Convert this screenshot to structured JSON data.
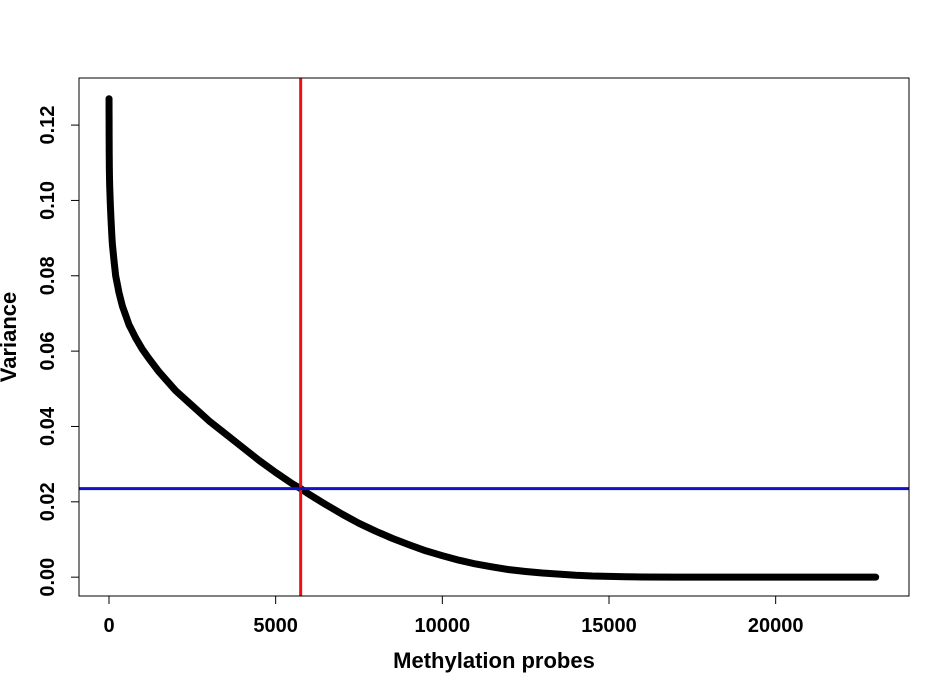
{
  "chart_data": {
    "type": "scatter",
    "title": "",
    "xlabel": "Methylation probes",
    "ylabel": "Variance",
    "xlim": [
      -900,
      24000
    ],
    "ylim": [
      -0.005,
      0.1325
    ],
    "xticks": [
      0,
      5000,
      10000,
      15000,
      20000
    ],
    "xtick_labels": [
      "0",
      "5000",
      "10000",
      "15000",
      "20000"
    ],
    "yticks": [
      0.0,
      0.02,
      0.04,
      0.06,
      0.08,
      0.1,
      0.12
    ],
    "ytick_labels": [
      "0.00",
      "0.02",
      "0.04",
      "0.06",
      "0.08",
      "0.10",
      "0.12"
    ],
    "grid": false,
    "series": [
      {
        "color": "#000000",
        "x": [
          1,
          2,
          3,
          4,
          5,
          6,
          7,
          8,
          10,
          12,
          15,
          20,
          30,
          40,
          60,
          80,
          100,
          150,
          200,
          300,
          400,
          500,
          600,
          800,
          1000,
          1200,
          1500,
          2000,
          2500,
          3000,
          3500,
          4000,
          4500,
          5000,
          5500,
          5750,
          6000,
          6500,
          7000,
          7500,
          8000,
          8500,
          9000,
          9500,
          10000,
          10500,
          11000,
          11500,
          12000,
          12500,
          13000,
          13500,
          14000,
          14500,
          15000,
          15500,
          16000,
          17000,
          18000,
          19000,
          20000,
          21000,
          22000,
          23000
        ],
        "y": [
          0.127,
          0.1225,
          0.121,
          0.117,
          0.1155,
          0.113,
          0.112,
          0.111,
          0.109,
          0.1075,
          0.106,
          0.104,
          0.1015,
          0.099,
          0.095,
          0.0915,
          0.0885,
          0.084,
          0.08,
          0.0755,
          0.072,
          0.0695,
          0.067,
          0.0635,
          0.0605,
          0.058,
          0.0545,
          0.0495,
          0.0455,
          0.0415,
          0.038,
          0.0345,
          0.031,
          0.0278,
          0.0248,
          0.0235,
          0.022,
          0.0193,
          0.0167,
          0.0143,
          0.0122,
          0.0103,
          0.0086,
          0.007,
          0.0057,
          0.0045,
          0.0035,
          0.0027,
          0.002,
          0.0015,
          0.0011,
          0.0008,
          0.0005,
          0.0003,
          0.0002,
          0.0001,
          5e-05,
          2e-05,
          1e-05,
          0.0,
          0.0,
          0.0,
          0.0,
          0.0
        ]
      }
    ],
    "reference_lines": [
      {
        "orientation": "vertical",
        "value": 5750,
        "color": "#ee1111"
      },
      {
        "orientation": "horizontal",
        "value": 0.0235,
        "color": "#1111cc"
      }
    ]
  }
}
